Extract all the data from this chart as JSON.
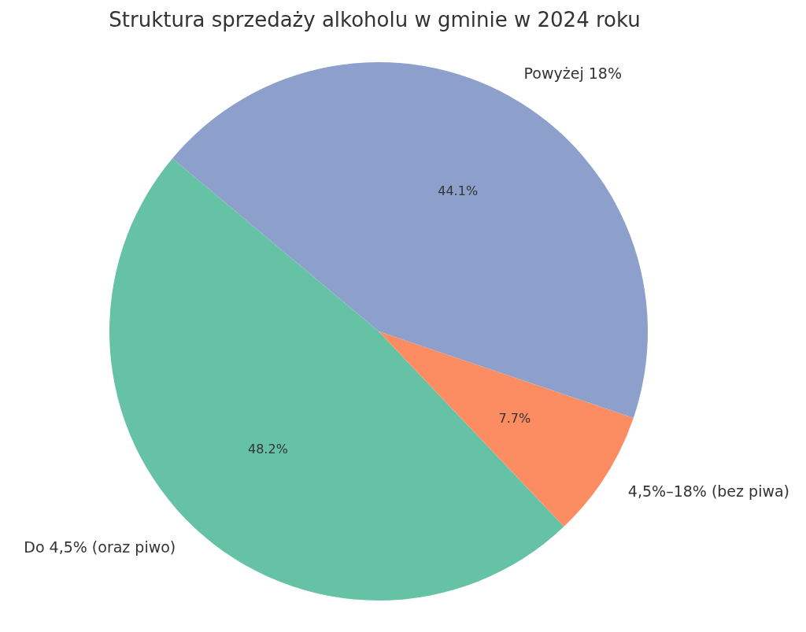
{
  "chart_data": {
    "type": "pie",
    "title": "Struktura sprzedaży alkoholu w gminie w 2024 roku",
    "categories": [
      "Do 4,5% (oraz piwo)",
      "4,5%–18% (bez piwa)",
      "Powyżej 18%"
    ],
    "values": [
      48.2,
      7.7,
      44.1
    ],
    "colors": [
      "#66c2a5",
      "#fc8d62",
      "#8da0cb"
    ],
    "value_labels": [
      "48.2%",
      "7.7%",
      "44.1%"
    ]
  }
}
